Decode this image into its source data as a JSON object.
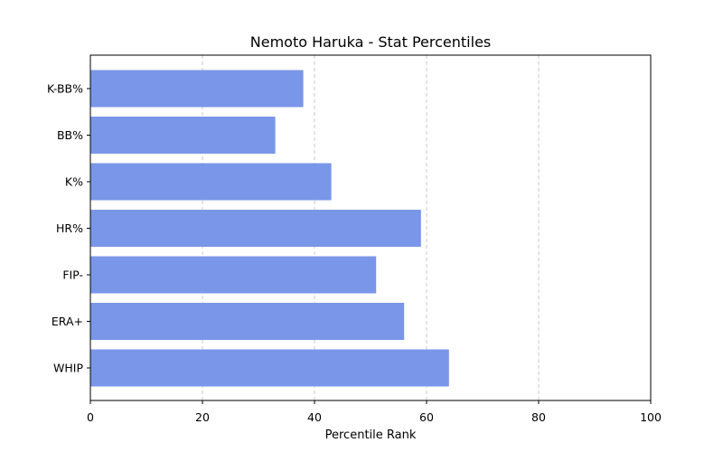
{
  "chart_data": {
    "type": "bar",
    "orientation": "horizontal",
    "title": "Nemoto Haruka - Stat Percentiles",
    "xlabel": "Percentile Rank",
    "ylabel": "",
    "categories": [
      "K-BB%",
      "BB%",
      "K%",
      "HR%",
      "FIP-",
      "ERA+",
      "WHIP"
    ],
    "values": [
      38,
      33,
      43,
      59,
      51,
      56,
      64
    ],
    "xlim": [
      0,
      100
    ],
    "xticks": [
      0,
      20,
      40,
      60,
      80,
      100
    ],
    "grid": "vertical dashed",
    "bar_color": "#7a96e9",
    "grid_color": "#c8c8c8"
  }
}
